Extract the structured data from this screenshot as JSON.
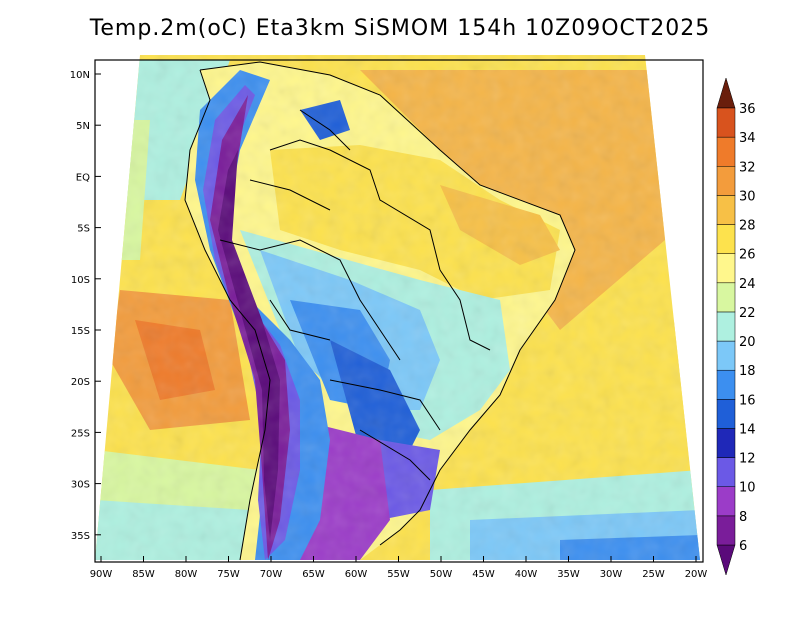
{
  "title": "Temp.2m(oC) Eta3km SiSMOM 154h 10Z09OCT2025",
  "lat_labels": [
    "10N",
    "5N",
    "EQ",
    "5S",
    "10S",
    "15S",
    "20S",
    "25S",
    "30S",
    "35S"
  ],
  "lon_labels": [
    "90W",
    "85W",
    "80W",
    "75W",
    "70W",
    "65W",
    "60W",
    "55W",
    "50W",
    "45W",
    "40W",
    "35W",
    "30W",
    "25W",
    "20W"
  ],
  "colorbar": {
    "labels": [
      "6",
      "8",
      "10",
      "12",
      "14",
      "16",
      "18",
      "20",
      "22",
      "24",
      "26",
      "28",
      "30",
      "32",
      "34",
      "36"
    ],
    "colors": [
      "#5a0a7a",
      "#7a1d9a",
      "#9b3cc8",
      "#6b59e6",
      "#1f28b8",
      "#1f5fd8",
      "#3c8ff0",
      "#7cc8f8",
      "#aef0e0",
      "#d8f7a0",
      "#fff78c",
      "#fde24d",
      "#f7c046",
      "#f39c3c",
      "#ef7b2a",
      "#d8531e",
      "#b8401a",
      "#8a2a10",
      "#6a1e0c"
    ]
  },
  "palette": {
    "ocean_warm": "#f5b548",
    "ocean_mid": "#fde24d",
    "ocean_cool": "#d8f7a0",
    "land_warm": "#fde24d",
    "land_cool": "#3c8ff0",
    "andes": "#6b1f96"
  }
}
